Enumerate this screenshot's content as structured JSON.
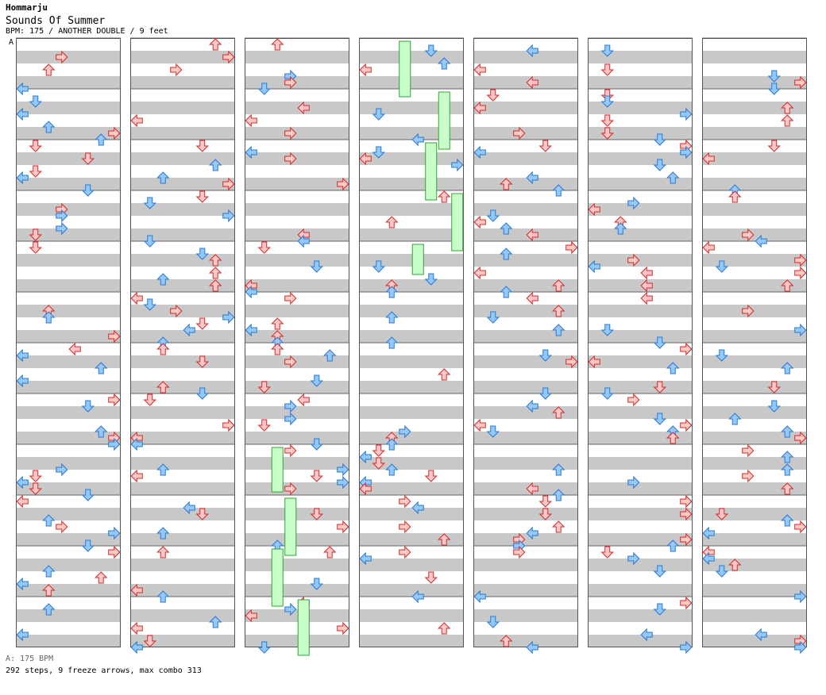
{
  "header": {
    "artist": "Hommarju",
    "title": "Sounds Of Summer",
    "info": "BPM: 175 / ANOTHER DOUBLE / 9 feet",
    "bpm_marker": "A"
  },
  "footer": {
    "bpm_line": "A: 175 BPM",
    "stats_line": "292 steps, 9 freeze arrows, max combo 313"
  },
  "colors": {
    "red_fill": "#ffc8c8",
    "red_stroke": "#d02828",
    "blue_fill": "#96c8ff",
    "blue_stroke": "#2878c8",
    "freeze_fill": "#c8ffc8",
    "freeze_stroke": "#38a038",
    "stripe": "#c8c8c8"
  },
  "columns": 7,
  "measures_per_column": 12,
  "lanes": 8,
  "notes": [
    [
      [
        0,
        0,
        6,
        "d"
      ],
      [
        0,
        0,
        2,
        "r"
      ],
      [
        1,
        0,
        1,
        "l"
      ],
      [
        0,
        0,
        2,
        "l"
      ],
      [
        2,
        1,
        1,
        "d"
      ],
      [
        4,
        0,
        2,
        "l"
      ],
      [
        4,
        1,
        2,
        "r"
      ],
      [
        5,
        2,
        1,
        "r"
      ],
      [
        6,
        3,
        1,
        "l"
      ],
      [
        7,
        3,
        3,
        "l"
      ],
      [
        8,
        1,
        1,
        "l"
      ],
      [
        9,
        3,
        1,
        "l"
      ],
      [
        12,
        0,
        2,
        "l"
      ],
      [
        15,
        1,
        2,
        "d"
      ],
      [
        18,
        0,
        1,
        "l"
      ],
      [
        20,
        3,
        1,
        "l"
      ],
      [
        24,
        4,
        2,
        "r"
      ],
      [
        25,
        5,
        2,
        "l"
      ],
      [
        30,
        4,
        3,
        "l"
      ],
      [
        34,
        3,
        3,
        "l"
      ],
      [
        36,
        3,
        1,
        "l"
      ],
      [
        38,
        4,
        3,
        "l"
      ],
      [
        39,
        5,
        2,
        "d"
      ],
      [
        42,
        5,
        3,
        "l"
      ],
      [
        42,
        5,
        2,
        "l"
      ],
      [
        43,
        4,
        3,
        "l"
      ],
      [
        47,
        5,
        1,
        "d"
      ],
      [
        48,
        4,
        1,
        "l"
      ],
      [
        49,
        5,
        2,
        "r"
      ],
      [
        52,
        6,
        2,
        "l"
      ],
      [
        54,
        6,
        3,
        "l"
      ],
      [
        56,
        6,
        1,
        "l"
      ],
      [
        58,
        7,
        3,
        "l"
      ],
      [
        64,
        0,
        1,
        "l"
      ],
      [
        65,
        2,
        3,
        "d"
      ],
      [
        68,
        1,
        3,
        "l"
      ],
      [
        70,
        4,
        3,
        "r"
      ],
      [
        72,
        7,
        3,
        "d"
      ],
      [
        73,
        7,
        2,
        "l"
      ]
    ],
    [
      [
        0,
        3,
        2,
        "r"
      ],
      [
        1,
        2,
        1,
        "u"
      ],
      [
        2,
        0,
        1,
        "l"
      ],
      [
        4,
        3,
        2,
        "r"
      ],
      [
        5,
        3,
        2,
        "r"
      ],
      [
        6,
        1,
        2,
        "d"
      ],
      [
        7,
        1,
        2,
        "d"
      ],
      [
        8,
        4,
        2,
        "l"
      ],
      [
        9,
        4,
        2,
        "l"
      ],
      [
        10,
        3,
        2,
        "r"
      ],
      [
        11,
        3,
        2,
        "u"
      ],
      [
        12,
        5,
        2,
        "d"
      ],
      [
        13,
        6,
        1,
        "u"
      ],
      [
        14,
        5,
        2,
        "d"
      ],
      [
        15,
        6,
        1,
        "u"
      ],
      [
        16,
        5,
        2,
        "d"
      ]
    ]
  ]
}
